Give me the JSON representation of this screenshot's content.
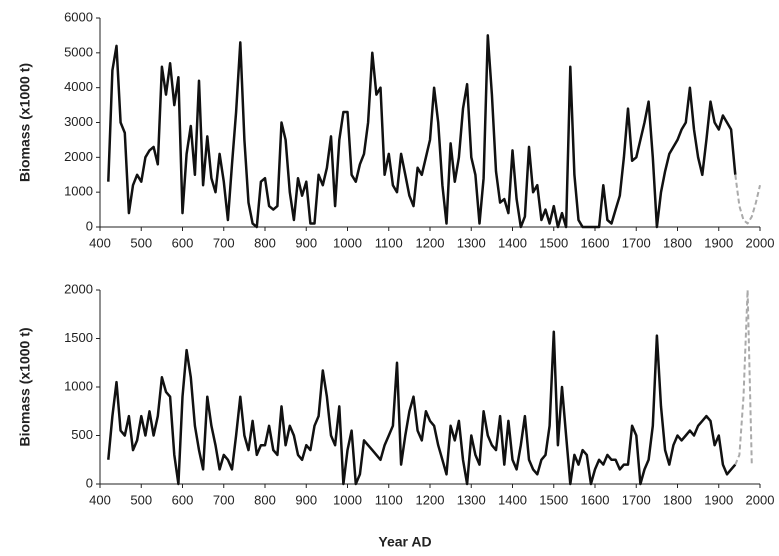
{
  "chart_data": [
    {
      "type": "line",
      "ylabel": "Biomass (x1000 t)",
      "xlim": [
        400,
        2000
      ],
      "xticks": [
        400,
        500,
        600,
        700,
        800,
        900,
        1000,
        1100,
        1200,
        1300,
        1400,
        1500,
        1600,
        1700,
        1800,
        1900,
        2000
      ],
      "ylim": [
        0,
        6000
      ],
      "yticks": [
        0,
        1000,
        2000,
        3000,
        4000,
        5000,
        6000
      ],
      "series": [
        {
          "color": "#111111",
          "dash": "solid",
          "x": [
            420,
            430,
            440,
            450,
            460,
            470,
            480,
            490,
            500,
            510,
            520,
            530,
            540,
            550,
            560,
            570,
            580,
            590,
            600,
            610,
            620,
            630,
            640,
            650,
            660,
            670,
            680,
            690,
            700,
            710,
            720,
            730,
            740,
            750,
            760,
            770,
            780,
            790,
            800,
            810,
            820,
            830,
            840,
            850,
            860,
            870,
            880,
            890,
            900,
            910,
            920,
            930,
            940,
            950,
            960,
            970,
            980,
            990,
            1000,
            1010,
            1020,
            1030,
            1040,
            1050,
            1060,
            1070,
            1080,
            1090,
            1100,
            1110,
            1120,
            1130,
            1140,
            1150,
            1160,
            1170,
            1180,
            1190,
            1200,
            1210,
            1220,
            1230,
            1240,
            1250,
            1260,
            1270,
            1280,
            1290,
            1300,
            1310,
            1320,
            1330,
            1340,
            1350,
            1360,
            1370,
            1380,
            1390,
            1400,
            1410,
            1420,
            1430,
            1440,
            1450,
            1460,
            1470,
            1480,
            1490,
            1500,
            1510,
            1520,
            1530,
            1540,
            1550,
            1560,
            1570,
            1580,
            1590,
            1600,
            1610,
            1620,
            1630,
            1640,
            1650,
            1660,
            1670,
            1680,
            1690,
            1700,
            1710,
            1720,
            1730,
            1740,
            1750,
            1760,
            1770,
            1780,
            1790,
            1800,
            1810,
            1820,
            1830,
            1840,
            1850,
            1860,
            1870,
            1880,
            1890,
            1900,
            1910,
            1920,
            1930,
            1940
          ],
          "values": [
            1300,
            4500,
            5200,
            3000,
            2700,
            400,
            1200,
            1500,
            1300,
            2000,
            2200,
            2300,
            1800,
            4600,
            3800,
            4700,
            3500,
            4300,
            400,
            2100,
            2900,
            1500,
            4200,
            1200,
            2600,
            1400,
            1000,
            2100,
            1300,
            200,
            1800,
            3300,
            5300,
            2500,
            700,
            100,
            0,
            1300,
            1400,
            600,
            500,
            600,
            3000,
            2500,
            1000,
            200,
            1400,
            900,
            1300,
            100,
            100,
            1500,
            1200,
            1700,
            2600,
            600,
            2500,
            3300,
            3300,
            1500,
            1300,
            1800,
            2100,
            3000,
            5000,
            3800,
            4000,
            1500,
            2100,
            1200,
            1000,
            2100,
            1500,
            900,
            600,
            1700,
            1500,
            2000,
            2500,
            4000,
            3000,
            1200,
            100,
            2400,
            1300,
            2000,
            3400,
            4100,
            2000,
            1500,
            100,
            1400,
            5500,
            3800,
            1600,
            700,
            800,
            400,
            2200,
            800,
            0,
            300,
            2300,
            1000,
            1200,
            200,
            500,
            100,
            600,
            0,
            400,
            0,
            4600,
            1500,
            200,
            0,
            0,
            0,
            0,
            0,
            1200,
            200,
            100,
            500,
            900,
            2000,
            3400,
            1900,
            2000,
            2500,
            3000,
            3600,
            2000,
            0,
            1000,
            1600,
            2100,
            2300,
            2500,
            2800,
            3000,
            4000,
            2800,
            2000,
            1500,
            2500,
            3600,
            3000,
            2800,
            3200,
            3000,
            2800,
            1500
          ]
        },
        {
          "color": "#aaaaaa",
          "dash": "dashed",
          "x": [
            1940,
            1950,
            1960,
            1970,
            1980,
            1990,
            2000
          ],
          "values": [
            1500,
            600,
            200,
            100,
            300,
            700,
            1200
          ]
        }
      ]
    },
    {
      "type": "line",
      "ylabel": "Biomass (x1000 t)",
      "xlabel": "Year AD",
      "xlim": [
        400,
        2000
      ],
      "xticks": [
        400,
        500,
        600,
        700,
        800,
        900,
        1000,
        1100,
        1200,
        1300,
        1400,
        1500,
        1600,
        1700,
        1800,
        1900,
        2000
      ],
      "ylim": [
        0,
        2000
      ],
      "yticks": [
        0,
        500,
        1000,
        1500,
        2000
      ],
      "series": [
        {
          "color": "#111111",
          "dash": "solid",
          "x": [
            420,
            430,
            440,
            450,
            460,
            470,
            480,
            490,
            500,
            510,
            520,
            530,
            540,
            550,
            560,
            570,
            580,
            590,
            600,
            610,
            620,
            630,
            640,
            650,
            660,
            670,
            680,
            690,
            700,
            710,
            720,
            730,
            740,
            750,
            760,
            770,
            780,
            790,
            800,
            810,
            820,
            830,
            840,
            850,
            860,
            870,
            880,
            890,
            900,
            910,
            920,
            930,
            940,
            950,
            960,
            970,
            980,
            990,
            1000,
            1010,
            1020,
            1030,
            1040,
            1050,
            1060,
            1070,
            1080,
            1090,
            1100,
            1110,
            1120,
            1130,
            1140,
            1150,
            1160,
            1170,
            1180,
            1190,
            1200,
            1210,
            1220,
            1230,
            1240,
            1250,
            1260,
            1270,
            1280,
            1290,
            1300,
            1310,
            1320,
            1330,
            1340,
            1350,
            1360,
            1370,
            1380,
            1390,
            1400,
            1410,
            1420,
            1430,
            1440,
            1450,
            1460,
            1470,
            1480,
            1490,
            1500,
            1510,
            1520,
            1530,
            1540,
            1550,
            1560,
            1570,
            1580,
            1590,
            1600,
            1610,
            1620,
            1630,
            1640,
            1650,
            1660,
            1670,
            1680,
            1690,
            1700,
            1710,
            1720,
            1730,
            1740,
            1750,
            1760,
            1770,
            1780,
            1790,
            1800,
            1810,
            1820,
            1830,
            1840,
            1850,
            1860,
            1870,
            1880,
            1890,
            1900,
            1910,
            1920,
            1930,
            1940
          ],
          "values": [
            250,
            700,
            1050,
            550,
            500,
            700,
            350,
            450,
            700,
            500,
            750,
            500,
            700,
            1100,
            950,
            900,
            300,
            0,
            900,
            1380,
            1100,
            600,
            350,
            150,
            900,
            600,
            400,
            150,
            300,
            250,
            150,
            500,
            900,
            500,
            350,
            650,
            300,
            400,
            400,
            600,
            350,
            300,
            800,
            400,
            600,
            500,
            300,
            250,
            400,
            350,
            600,
            700,
            1170,
            900,
            500,
            400,
            800,
            0,
            350,
            550,
            0,
            100,
            450,
            400,
            350,
            300,
            250,
            400,
            500,
            600,
            1250,
            200,
            500,
            750,
            900,
            550,
            450,
            750,
            650,
            600,
            400,
            250,
            100,
            600,
            450,
            650,
            250,
            0,
            500,
            300,
            200,
            750,
            500,
            400,
            350,
            700,
            200,
            650,
            250,
            150,
            400,
            700,
            250,
            150,
            100,
            250,
            300,
            600,
            1570,
            400,
            1000,
            500,
            0,
            300,
            200,
            350,
            300,
            0,
            150,
            250,
            200,
            300,
            250,
            250,
            150,
            200,
            200,
            600,
            500,
            0,
            150,
            250,
            600,
            1530,
            800,
            350,
            200,
            400,
            500,
            450,
            500,
            550,
            500,
            600,
            650,
            700,
            650,
            400,
            500,
            200,
            100,
            150,
            200
          ]
        },
        {
          "color": "#aaaaaa",
          "dash": "dashed",
          "x": [
            1940,
            1950,
            1960,
            1970,
            1980
          ],
          "values": [
            200,
            300,
            900,
            2000,
            200
          ]
        }
      ]
    }
  ]
}
